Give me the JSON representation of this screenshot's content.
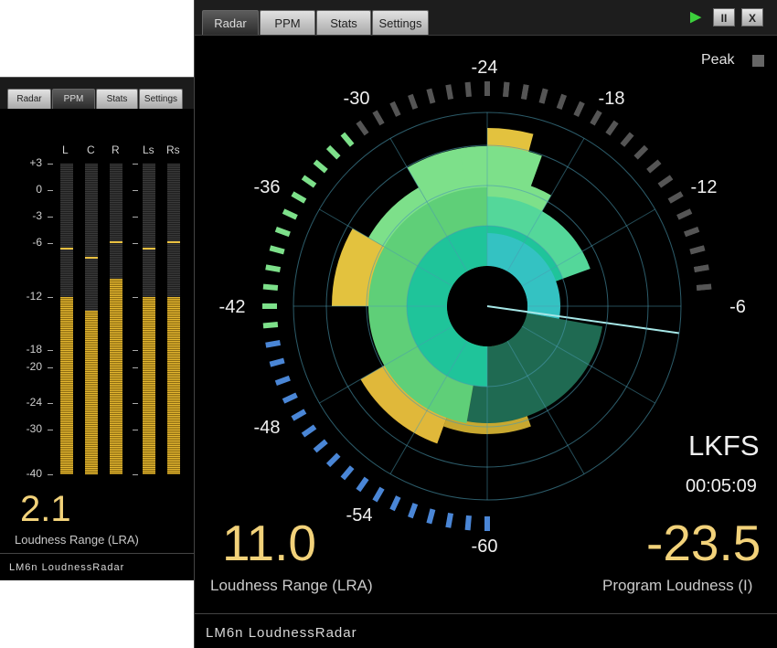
{
  "ppm_window": {
    "tabs": [
      "Radar",
      "PPM",
      "Stats",
      "Settings"
    ],
    "active_tab": "PPM",
    "channels": [
      {
        "label": "L",
        "level_db": -12,
        "peak_db": -6.5
      },
      {
        "label": "C",
        "level_db": -13.5,
        "peak_db": -7.5
      },
      {
        "label": "R",
        "level_db": -10,
        "peak_db": -5.8
      },
      {
        "label": "Ls",
        "level_db": -12,
        "peak_db": -6.5
      },
      {
        "label": "Rs",
        "level_db": -12,
        "peak_db": -5.8
      }
    ],
    "scale": [
      "+3",
      "0",
      "-3",
      "-6",
      "-12",
      "-18",
      "-20",
      "-24",
      "-30",
      "-40"
    ],
    "lra_value": "2.1",
    "lra_label": "Loudness Range (LRA)",
    "brand_prefix": "LM6n",
    "brand_name": "LoudnessRadar"
  },
  "radar_window": {
    "tabs": [
      "Radar",
      "PPM",
      "Stats",
      "Settings"
    ],
    "active_tab": "Radar",
    "controls": {
      "play": "▶",
      "pause": "II",
      "close": "X"
    },
    "peak_label": "Peak",
    "ring_labels": [
      "-24",
      "-18",
      "-12",
      "-6",
      "-60",
      "-54",
      "-48",
      "-42",
      "-36",
      "-30"
    ],
    "unit": "LKFS",
    "time": "00:05:09",
    "lra_value": "11.0",
    "lra_label": "Loudness Range (LRA)",
    "program_value": "-23.5",
    "program_label": "Program Loudness (I)",
    "brand_prefix": "LM6n",
    "brand_name": "LoudnessRadar"
  },
  "colors": {
    "accent_yellow": "#f2d27a",
    "green": "#7de08a",
    "teal": "#35c3c3",
    "blue": "#4a86d6",
    "gray_led": "#555555"
  }
}
